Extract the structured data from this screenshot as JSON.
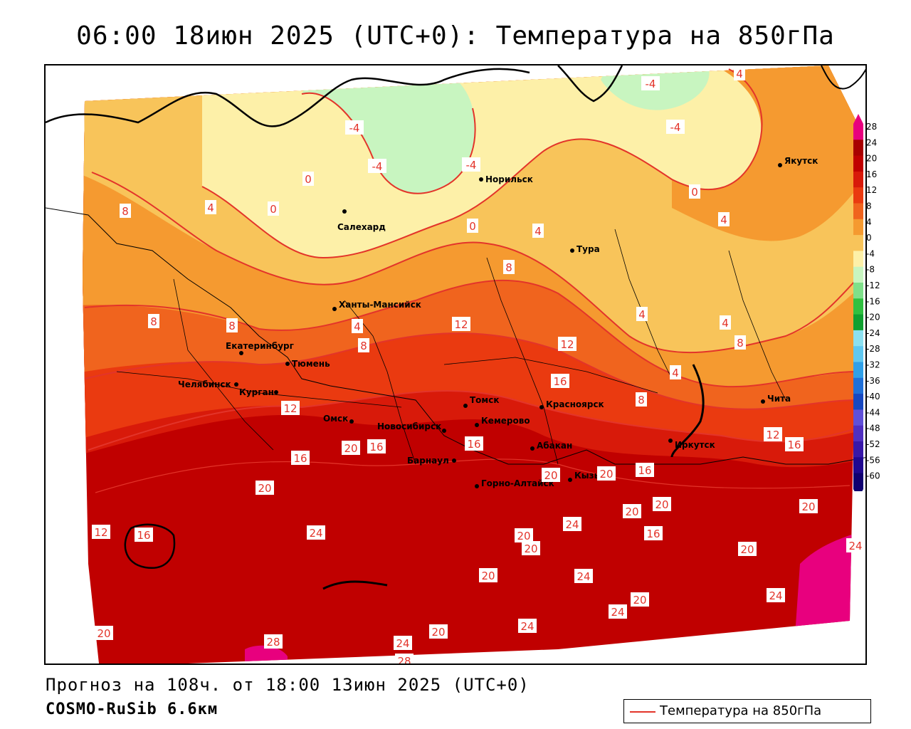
{
  "title": "06:00 18июн 2025 (UTC+0): Температура на 850гПа",
  "footer": {
    "forecast": "Прогноз на 108ч. от 18:00 13июн 2025 (UTC+0)",
    "model": "COSMO-RuSib 6.6км"
  },
  "legend": {
    "label": "Температура на 850гПа",
    "line_color": "#e3342a"
  },
  "color_scale": {
    "labels": [
      "28",
      "24",
      "20",
      "16",
      "12",
      "8",
      "4",
      "0",
      "-4",
      "-8",
      "-12",
      "-16",
      "-20",
      "-24",
      "-28",
      "-32",
      "-36",
      "-40",
      "-44",
      "-48",
      "-52",
      "-56",
      "-60"
    ],
    "colors": [
      "#e8007e",
      "#a80000",
      "#c00000",
      "#d81a0a",
      "#ea3a10",
      "#f0641e",
      "#f59a30",
      "#f8c45a",
      "#fdf0a8",
      "#c8f5c0",
      "#7fe08a",
      "#30c040",
      "#10a030",
      "#8ce0f0",
      "#60c8f0",
      "#30a0e8",
      "#2070d8",
      "#1848c0",
      "#6050d8",
      "#5030c0",
      "#3818a8",
      "#200890",
      "#100070"
    ]
  },
  "cities": [
    {
      "name": "Норильск"
    },
    {
      "name": "Салехард"
    },
    {
      "name": "Якутск"
    },
    {
      "name": "Тура"
    },
    {
      "name": "Ханты-Мансийск"
    },
    {
      "name": "Екатеринбург"
    },
    {
      "name": "Тюмень"
    },
    {
      "name": "Челябинск"
    },
    {
      "name": "Курган"
    },
    {
      "name": "Омск"
    },
    {
      "name": "Новосибирск"
    },
    {
      "name": "Томск"
    },
    {
      "name": "Кемерово"
    },
    {
      "name": "Красноярск"
    },
    {
      "name": "Барнаул"
    },
    {
      "name": "Абакан"
    },
    {
      "name": "Горно-Алтайск"
    },
    {
      "name": "Кызыл"
    },
    {
      "name": "Иркутск"
    },
    {
      "name": "Чита"
    }
  ],
  "isotherm_labels": [
    "-4",
    "-4",
    "-4",
    "-4",
    "-4",
    "4",
    "0",
    "0",
    "0",
    "4",
    "8",
    "4",
    "0",
    "4",
    "8",
    "4",
    "8",
    "8",
    "8",
    "12",
    "4",
    "4",
    "4",
    "8",
    "12",
    "12",
    "16",
    "16",
    "12",
    "8",
    "16",
    "16",
    "16",
    "16",
    "20",
    "20",
    "20",
    "20",
    "20",
    "12",
    "16",
    "24",
    "20",
    "20",
    "24",
    "16",
    "20",
    "24",
    "24",
    "20",
    "20",
    "24",
    "20",
    "24",
    "20",
    "28",
    "24",
    "20",
    "24",
    "28",
    "20",
    "24"
  ]
}
